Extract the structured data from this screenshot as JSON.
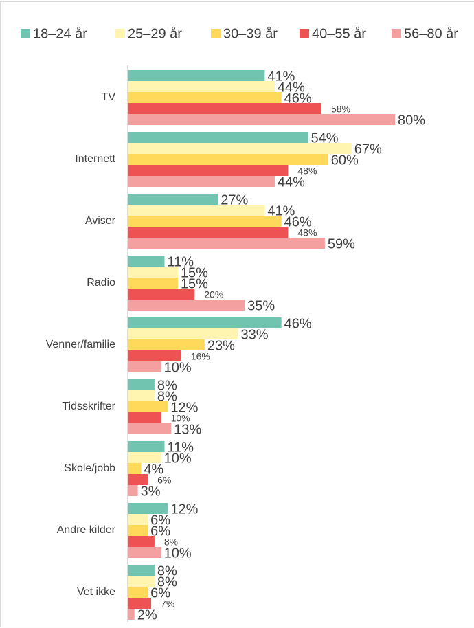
{
  "chart_data": {
    "type": "barh",
    "categories": [
      "TV",
      "Internett",
      "Aviser",
      "Radio",
      "Venner/familie",
      "Tidsskrifter",
      "Skole/jobb",
      "Andre kilder",
      "Vet ikke"
    ],
    "xlim": [
      0,
      80
    ],
    "legend": "top",
    "series": [
      {
        "name": "18–24 år",
        "color": "#70c4b0",
        "values": [
          41,
          54,
          27,
          11,
          46,
          8,
          11,
          12,
          8
        ],
        "value_labels": [
          "41%",
          "54%",
          "27%",
          "11%",
          "46%",
          "8%",
          "11%",
          "12%",
          "8%"
        ]
      },
      {
        "name": "25–29 år",
        "color": "#fff5b0",
        "values": [
          44,
          67,
          41,
          15,
          33,
          8,
          10,
          6,
          8
        ],
        "value_labels": [
          "44%",
          "67%",
          "41%",
          "15%",
          "33%",
          "8%",
          "10%",
          "6%",
          "8%"
        ]
      },
      {
        "name": "30–39 år",
        "color": "#ffd95a",
        "values": [
          46,
          60,
          46,
          15,
          23,
          12,
          4,
          6,
          6
        ],
        "value_labels": [
          "46%",
          "60%",
          "46%",
          "15%",
          "23%",
          "12%",
          "4%",
          "6%",
          "6%"
        ]
      },
      {
        "name": "40–55 år",
        "color": "#ee5252",
        "values": [
          58,
          48,
          48,
          20,
          16,
          10,
          6,
          8,
          7
        ],
        "value_labels": [
          "58%",
          "48%",
          "48%",
          "20%",
          "16%",
          "10%",
          "6%",
          "8%",
          "7%"
        ]
      },
      {
        "name": "56–80 år",
        "color": "#f4a0a0",
        "values": [
          80,
          44,
          59,
          35,
          10,
          13,
          3,
          10,
          2
        ],
        "value_labels": [
          "80%",
          "44%",
          "59%",
          "35%",
          "10%",
          "13%",
          "3%",
          "10%",
          "2%"
        ]
      }
    ]
  }
}
